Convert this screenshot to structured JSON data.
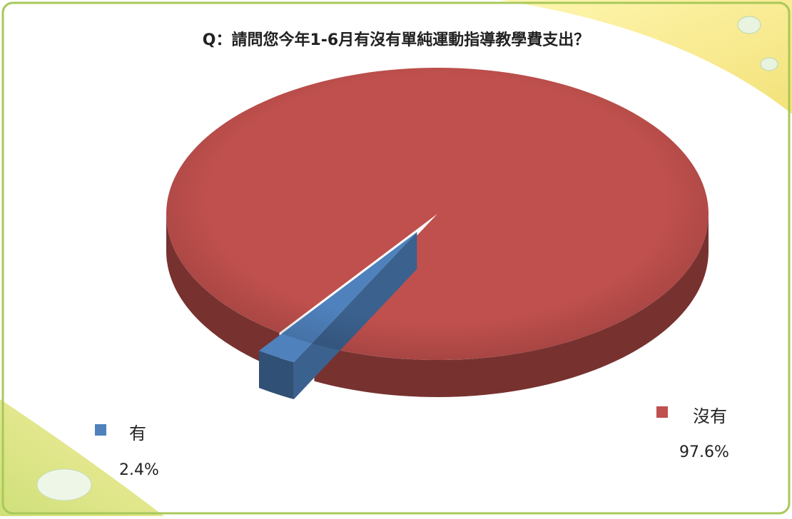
{
  "chart_data": {
    "type": "pie",
    "title": "Q：請問您今年1-6月有沒有單純運動指導教學費支出？",
    "categories": [
      "有",
      "沒有"
    ],
    "values": [
      2.4,
      97.6
    ],
    "value_labels": [
      "2.4%",
      "97.6%"
    ],
    "colors": [
      "#4f81bd",
      "#c0504d"
    ],
    "legend": "beside-slices"
  }
}
